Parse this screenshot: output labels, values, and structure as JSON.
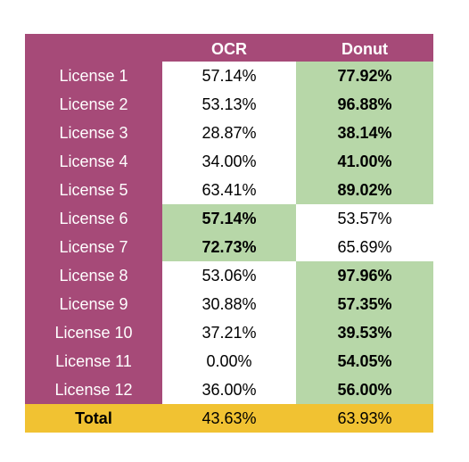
{
  "table": {
    "headers": [
      "",
      "OCR",
      "Donut"
    ],
    "rows": [
      {
        "label": "License 1",
        "ocr": "57.14%",
        "donut": "77.92%",
        "best": "donut"
      },
      {
        "label": "License 2",
        "ocr": "53.13%",
        "donut": "96.88%",
        "best": "donut"
      },
      {
        "label": "License 3",
        "ocr": "28.87%",
        "donut": "38.14%",
        "best": "donut"
      },
      {
        "label": "License 4",
        "ocr": "34.00%",
        "donut": "41.00%",
        "best": "donut"
      },
      {
        "label": "License 5",
        "ocr": "63.41%",
        "donut": "89.02%",
        "best": "donut"
      },
      {
        "label": "License 6",
        "ocr": "57.14%",
        "donut": "53.57%",
        "best": "ocr"
      },
      {
        "label": "License 7",
        "ocr": "72.73%",
        "donut": "65.69%",
        "best": "ocr"
      },
      {
        "label": "License 8",
        "ocr": "53.06%",
        "donut": "97.96%",
        "best": "donut"
      },
      {
        "label": "License 9",
        "ocr": "30.88%",
        "donut": "57.35%",
        "best": "donut"
      },
      {
        "label": "License 10",
        "ocr": "37.21%",
        "donut": "39.53%",
        "best": "donut"
      },
      {
        "label": "License 11",
        "ocr": "0.00%",
        "donut": "54.05%",
        "best": "donut"
      },
      {
        "label": "License 12",
        "ocr": "36.00%",
        "donut": "56.00%",
        "best": "donut"
      }
    ],
    "total": {
      "label": "Total",
      "ocr": "43.63%",
      "donut": "63.93%"
    }
  },
  "colors": {
    "label_bg": "#a64a78",
    "best_bg": "#b7d7a8",
    "total_bg": "#f1c232"
  }
}
